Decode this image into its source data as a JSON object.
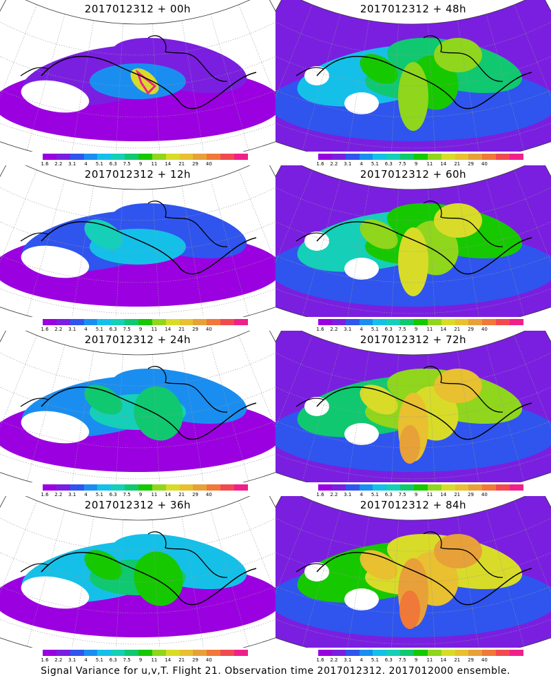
{
  "caption": "Signal Variance for u,v,T. Flight 21. Observation time 2017012312. 2017012000 ensemble.",
  "colorbar": {
    "colors": [
      "#9b00e0",
      "#7a1fe0",
      "#2f55ee",
      "#1a8ef0",
      "#15c0e8",
      "#15cfb8",
      "#10c870",
      "#16c800",
      "#8fd61c",
      "#d8dc28",
      "#e8c030",
      "#e8a038",
      "#f07838",
      "#f04a50",
      "#f0208a"
    ],
    "ticks": [
      "1.6",
      "2.2",
      "3.1",
      "4",
      "5.1",
      "6.3",
      "7.5",
      "9",
      "11",
      "14",
      "21",
      "29",
      "40"
    ]
  },
  "panels": [
    {
      "id": "p00",
      "title": "2017012312 + 00h",
      "col": 0,
      "row": 0,
      "lead": 0
    },
    {
      "id": "p48",
      "title": "2017012312 + 48h",
      "col": 1,
      "row": 0,
      "lead": 48
    },
    {
      "id": "p12",
      "title": "2017012312 + 12h",
      "col": 0,
      "row": 1,
      "lead": 12
    },
    {
      "id": "p60",
      "title": "2017012312 + 60h",
      "col": 1,
      "row": 1,
      "lead": 60
    },
    {
      "id": "p24",
      "title": "2017012312 + 24h",
      "col": 0,
      "row": 2,
      "lead": 24
    },
    {
      "id": "p72",
      "title": "2017012312 + 72h",
      "col": 1,
      "row": 2,
      "lead": 72
    },
    {
      "id": "p36",
      "title": "2017012312 + 36h",
      "col": 0,
      "row": 3,
      "lead": 36
    },
    {
      "id": "p84",
      "title": "2017012312 + 84h",
      "col": 1,
      "row": 3,
      "lead": 84
    }
  ]
}
